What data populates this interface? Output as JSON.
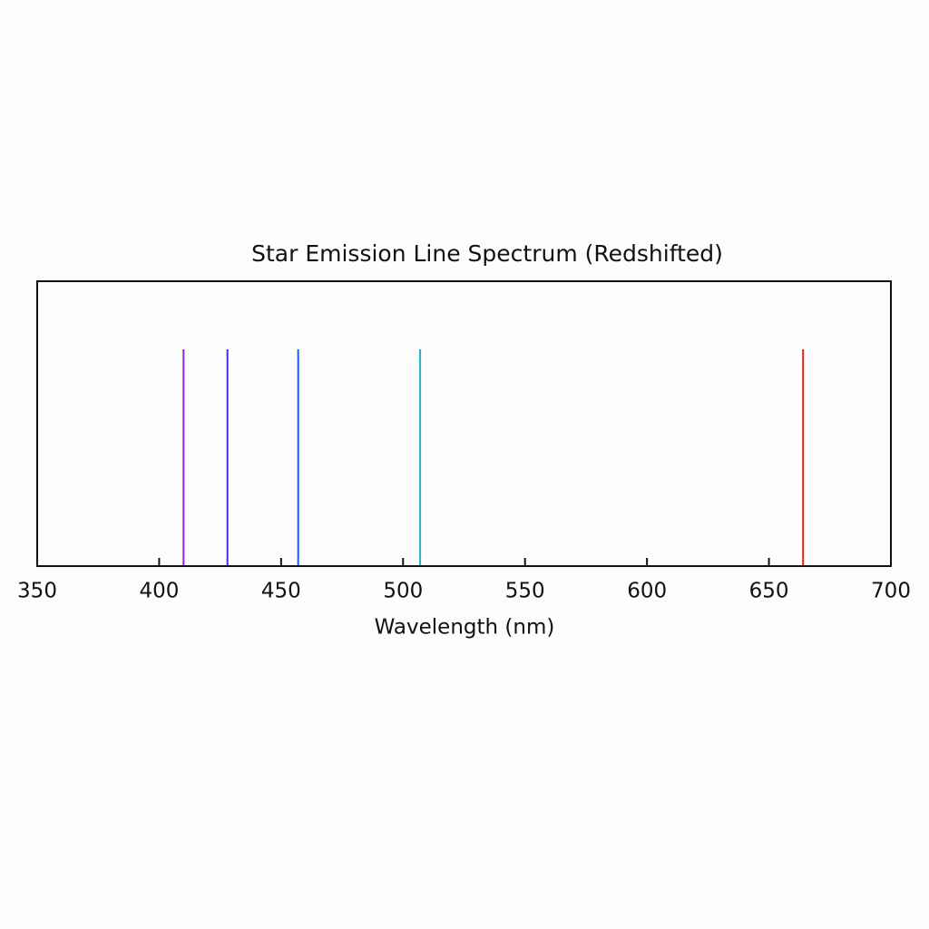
{
  "chart_data": {
    "type": "spectrum",
    "title": "Star Emission Line Spectrum (Redshifted)",
    "x_label": "Wavelength (nm)",
    "x": [
      410,
      428,
      457,
      507,
      664
    ],
    "colors": [
      "#8a2be2",
      "#3d2ee0",
      "#1c5fe0",
      "#1fb3c4",
      "#e0201f"
    ],
    "xlim": [
      350,
      700
    ],
    "xticks": [
      350,
      400,
      450,
      500,
      550,
      600,
      650,
      700
    ]
  }
}
